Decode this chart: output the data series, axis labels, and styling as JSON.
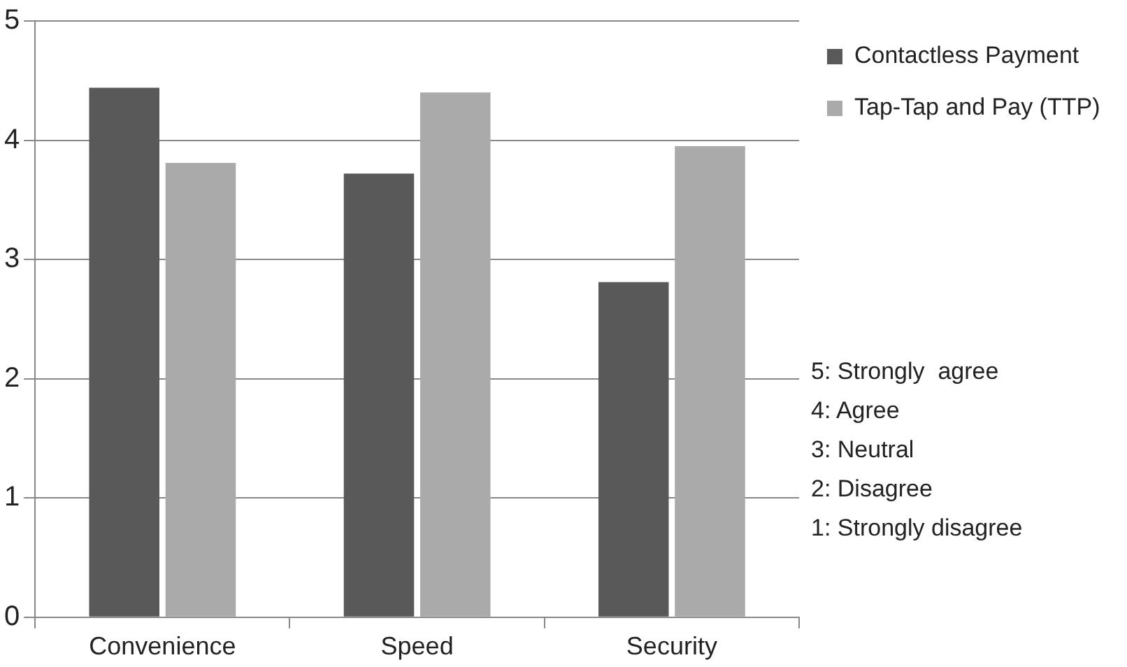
{
  "chart_data": {
    "type": "bar",
    "categories": [
      "Convenience",
      "Speed",
      "Security"
    ],
    "series": [
      {
        "name": "Contactless Payment",
        "color": "#595959",
        "values": [
          4.44,
          3.72,
          2.81
        ]
      },
      {
        "name": "Tap-Tap and Pay (TTP)",
        "color": "#aaaaaa",
        "values": [
          3.81,
          4.4,
          3.95
        ]
      }
    ],
    "ylim": [
      0,
      5
    ],
    "yticks": [
      0,
      1,
      2,
      3,
      4,
      5
    ],
    "grid": "y",
    "legend": "right",
    "annotations": [
      "5: Strongly  agree",
      "4: Agree",
      "3: Neutral",
      "2: Disagree",
      "1: Strongly disagree"
    ]
  }
}
